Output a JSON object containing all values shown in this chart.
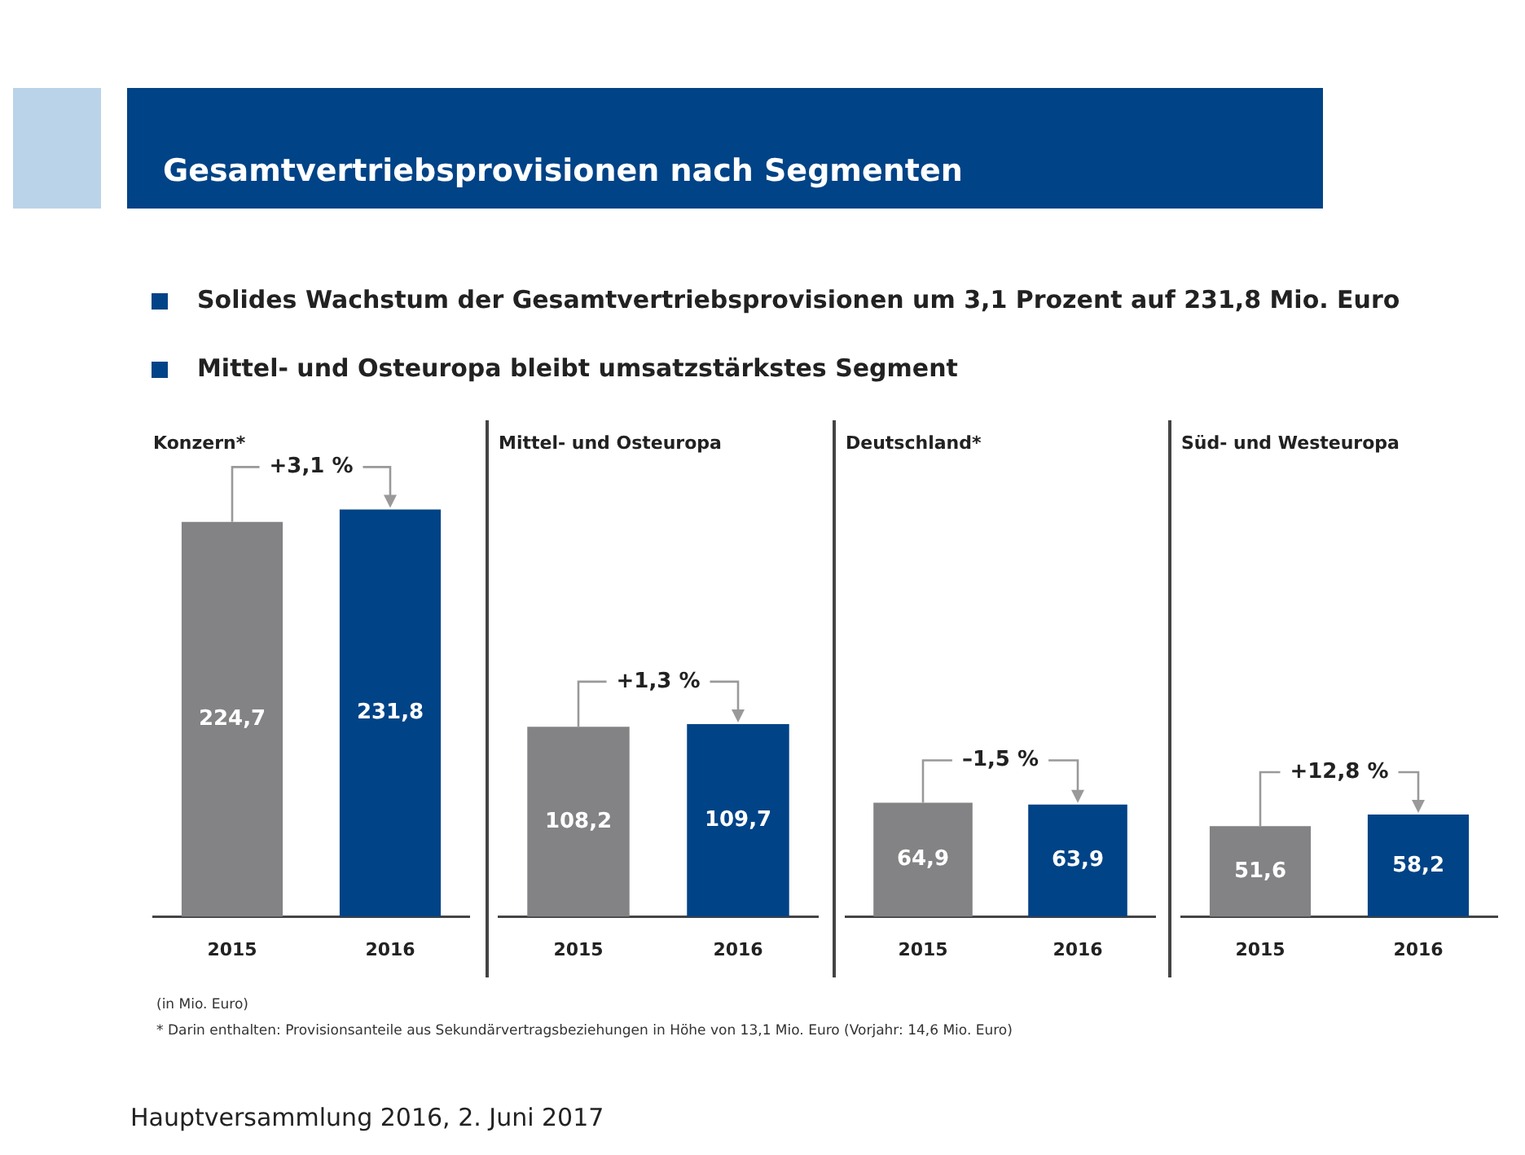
{
  "chart_data": [
    {
      "type": "other",
      "title": "Gesamtvertriebsprovisionen nach Segmenten",
      "annotations": [
        "Solides Wachstum der Gesamtvertriebsprovisionen um 3,1 Prozent auf 231,8 Mio. Euro",
        "Mittel- und Osteuropa bleibt umsatzstärkstes Segment"
      ]
    },
    {
      "type": "bar",
      "title": "Konzern*",
      "categories": [
        "2015",
        "2016"
      ],
      "values": [
        224.7,
        231.8
      ],
      "colors": [
        "#838386",
        "#004386"
      ],
      "value_labels": [
        "224,7",
        "231,8"
      ],
      "annotations": [
        "+3,1 %"
      ]
    },
    {
      "type": "bar",
      "title": "Mittel- und Osteuropa",
      "categories": [
        "2015",
        "2016"
      ],
      "values": [
        108.2,
        109.7
      ],
      "colors": [
        "#838386",
        "#004386"
      ],
      "value_labels": [
        "108,2",
        "109,7"
      ],
      "annotations": [
        "+1,3 %"
      ]
    },
    {
      "type": "bar",
      "title": "Deutschland*",
      "categories": [
        "2015",
        "2016"
      ],
      "values": [
        64.9,
        63.9
      ],
      "colors": [
        "#838386",
        "#004386"
      ],
      "value_labels": [
        "64,9",
        "63,9"
      ],
      "annotations": [
        "–1,5 %"
      ]
    },
    {
      "type": "bar",
      "title": "Süd- und Westeuropa",
      "categories": [
        "2015",
        "2016"
      ],
      "values": [
        51.6,
        58.2
      ],
      "colors": [
        "#838386",
        "#004386"
      ],
      "value_labels": [
        "51,6",
        "58,2"
      ],
      "annotations": [
        "+12,8 %"
      ]
    },
    {
      "type": "other",
      "annotations": [
        "(in Mio. Euro)",
        "* Darin enthalten: Provisionsanteile aus Sekundärvertragsbeziehungen in Höhe von 13,1 Mio. Euro (Vorjahr: 14,6 Mio. Euro)"
      ]
    },
    {
      "type": "other",
      "annotations": [
        "Hauptversammlung 2016, 2. Juni 2017"
      ]
    }
  ]
}
